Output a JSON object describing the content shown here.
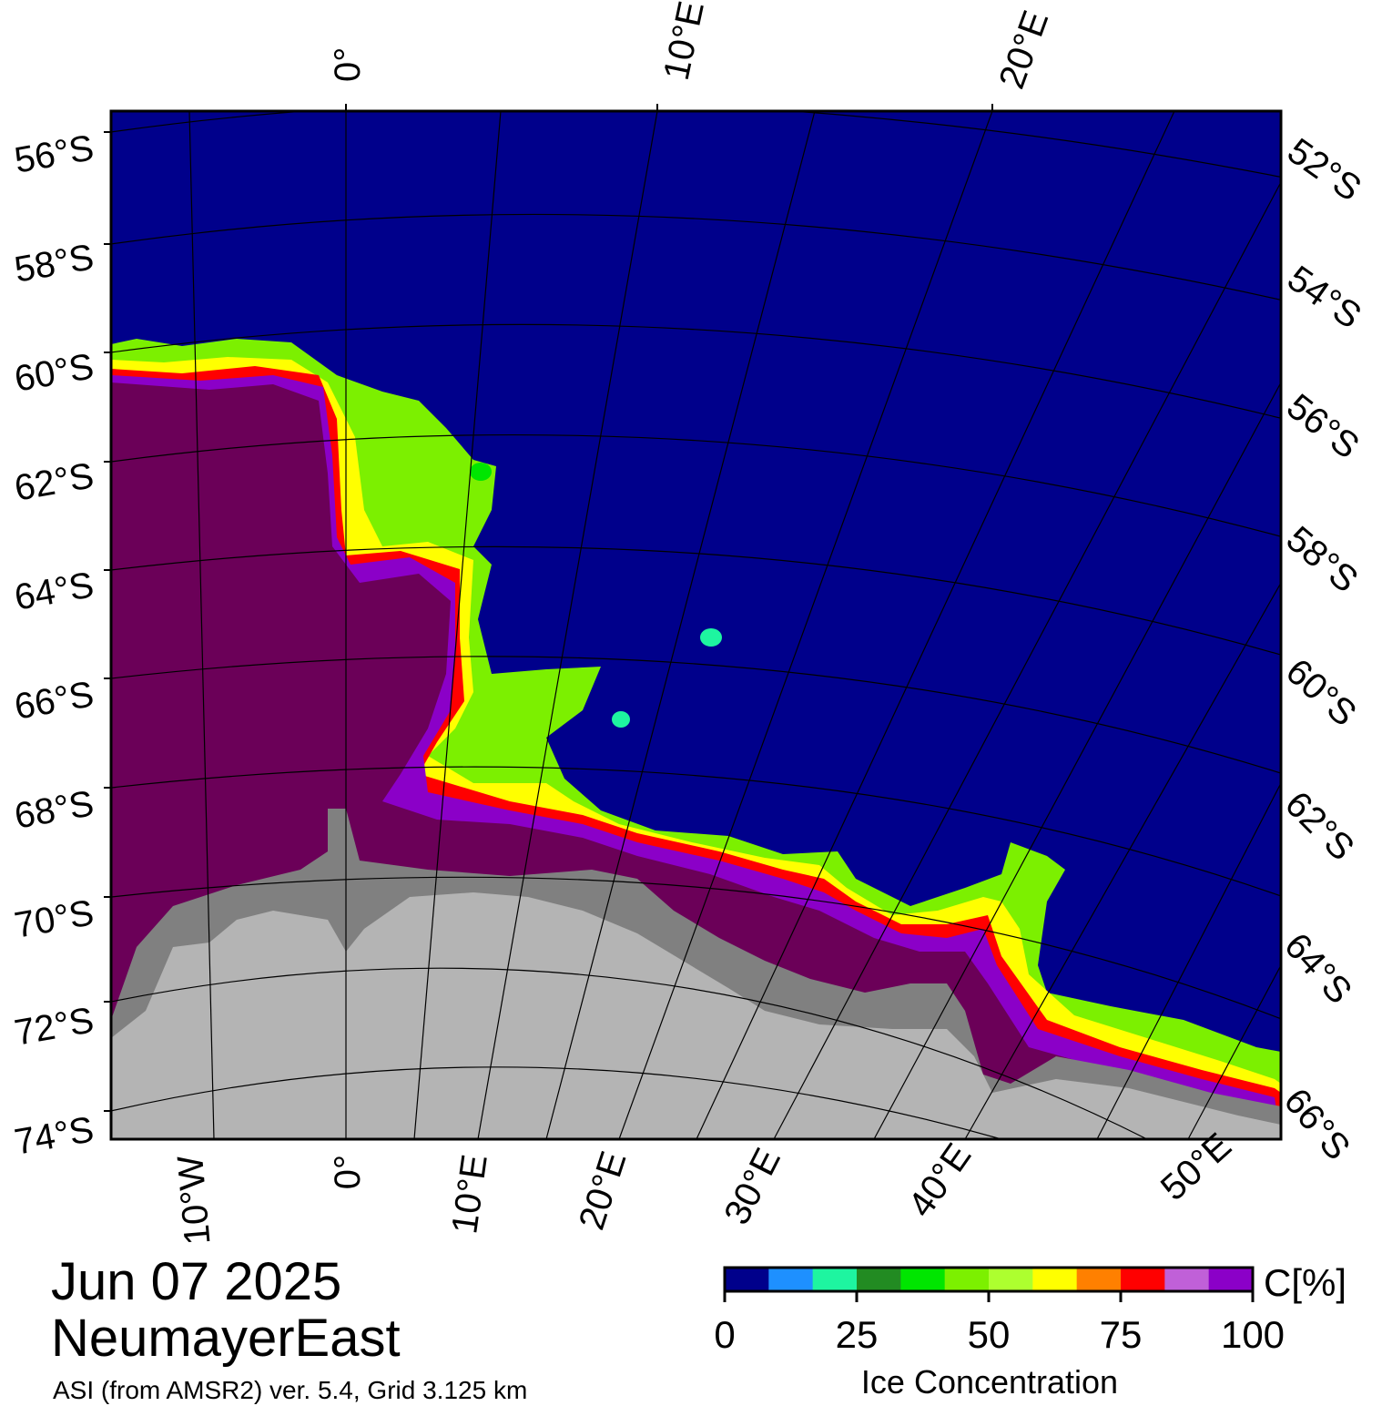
{
  "map": {
    "date": "Jun 07 2025",
    "region": "NeumayerEast",
    "product": "ASI (from AMSR2) ver. 5.4,  Grid 3.125 km",
    "colors": {
      "open_water": "#00008b",
      "land": "#b4b4b4",
      "ice_shelf": "#808080",
      "frame": "#000000"
    },
    "lon_labels_top": [
      "0°",
      "10°E",
      "20°E"
    ],
    "lon_labels_bottom": [
      "10°W",
      "0°",
      "10°E",
      "20°E",
      "30°E",
      "40°E",
      "50°E"
    ],
    "lat_labels_left": [
      "56°S",
      "58°S",
      "60°S",
      "62°S",
      "64°S",
      "66°S",
      "68°S",
      "70°S",
      "72°S",
      "74°S"
    ],
    "lat_labels_right": [
      "52°S",
      "54°S",
      "56°S",
      "58°S",
      "60°S",
      "62°S",
      "64°S",
      "66°S"
    ]
  },
  "colorbar": {
    "title": "Ice Concentration",
    "unit": "C[%]",
    "ticks": [
      "0",
      "25",
      "50",
      "75",
      "100"
    ],
    "colors": [
      "#00008b",
      "#1e90ff",
      "#1ef5a0",
      "#228b22",
      "#00e600",
      "#7cf000",
      "#adff2f",
      "#ffff00",
      "#ff8000",
      "#ff0000",
      "#c060d8",
      "#8b00c8"
    ]
  }
}
